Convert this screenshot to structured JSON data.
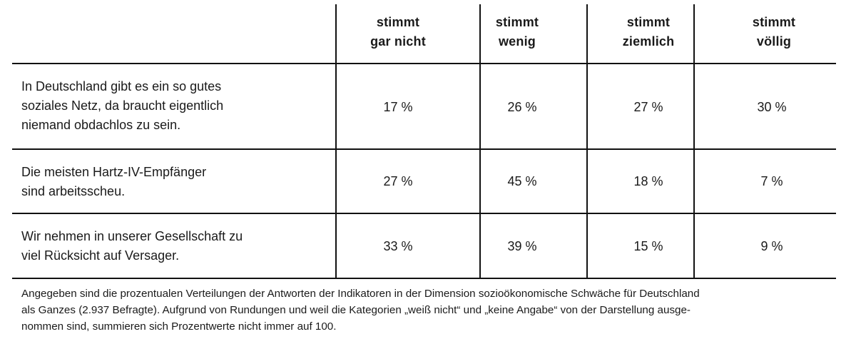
{
  "chart_data": {
    "type": "table",
    "columns": [
      [
        "stimmt",
        "gar nicht"
      ],
      [
        "stimmt",
        "wenig"
      ],
      [
        "stimmt",
        "ziemlich"
      ],
      [
        "stimmt",
        "völlig"
      ]
    ],
    "rows": [
      {
        "label_lines": [
          "In Deutschland gibt es ein so gutes",
          "soziales Netz, da braucht eigentlich",
          "niemand obdachlos zu sein."
        ],
        "values": [
          "17 %",
          "26 %",
          "27 %",
          "30 %"
        ]
      },
      {
        "label_lines": [
          "Die meisten Hartz-IV-Empfänger",
          "sind arbeitsscheu."
        ],
        "values": [
          "27 %",
          "45 %",
          "18 %",
          "7 %"
        ]
      },
      {
        "label_lines": [
          "Wir nehmen in unserer Gesellschaft zu",
          "viel Rücksicht auf Versager."
        ],
        "values": [
          "33 %",
          "39 %",
          "15 %",
          "9 %"
        ]
      }
    ]
  },
  "footnote_lines": [
    "Angegeben sind die prozentualen Verteilungen der Antworten der Indikatoren in der Dimension sozioökonomische Schwäche für Deutschland",
    "als Ganzes (2.937 Befragte). Aufgrund von Rundungen und weil die Kategorien „weiß nicht“ und „keine Angabe“ von der Darstellung ausge-",
    "nommen sind, summieren sich Prozentwerte nicht immer auf 100."
  ]
}
